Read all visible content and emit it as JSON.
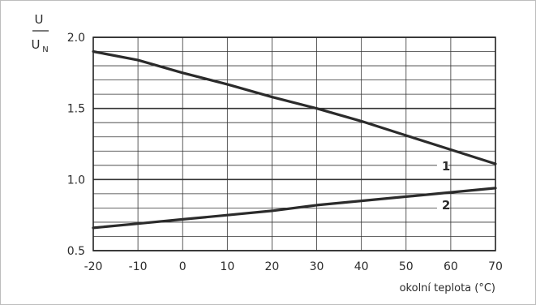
{
  "chart_data": {
    "type": "line",
    "title": "",
    "xlabel": "okolní teplota (°C)",
    "ylabel": {
      "numerator": "U",
      "denominator": "U",
      "denominator_subscript": "N"
    },
    "xlim": [
      -20,
      70
    ],
    "ylim": [
      0.5,
      2.0
    ],
    "x_ticks": [
      "-20",
      "-10",
      "0",
      "10",
      "20",
      "30",
      "40",
      "50",
      "60",
      "70"
    ],
    "y_ticks": [
      "0.5",
      "1.0",
      "1.5",
      "2.0"
    ],
    "grid": true,
    "grid_y_step": 0.1,
    "grid_x_step": 10,
    "series": [
      {
        "name": "1",
        "x": [
          -20,
          -10,
          0,
          10,
          20,
          30,
          40,
          50,
          60,
          70
        ],
        "y": [
          1.9,
          1.84,
          1.75,
          1.67,
          1.58,
          1.5,
          1.41,
          1.31,
          1.21,
          1.11
        ],
        "label_at_x": 62
      },
      {
        "name": "2",
        "x": [
          -20,
          -10,
          0,
          10,
          20,
          30,
          40,
          50,
          60,
          70
        ],
        "y": [
          0.66,
          0.69,
          0.72,
          0.75,
          0.78,
          0.82,
          0.85,
          0.88,
          0.91,
          0.94
        ],
        "label_at_x": 62
      }
    ],
    "colors": {
      "line": "#2b2b2b",
      "grid": "#333333",
      "axis": "#222222"
    }
  }
}
